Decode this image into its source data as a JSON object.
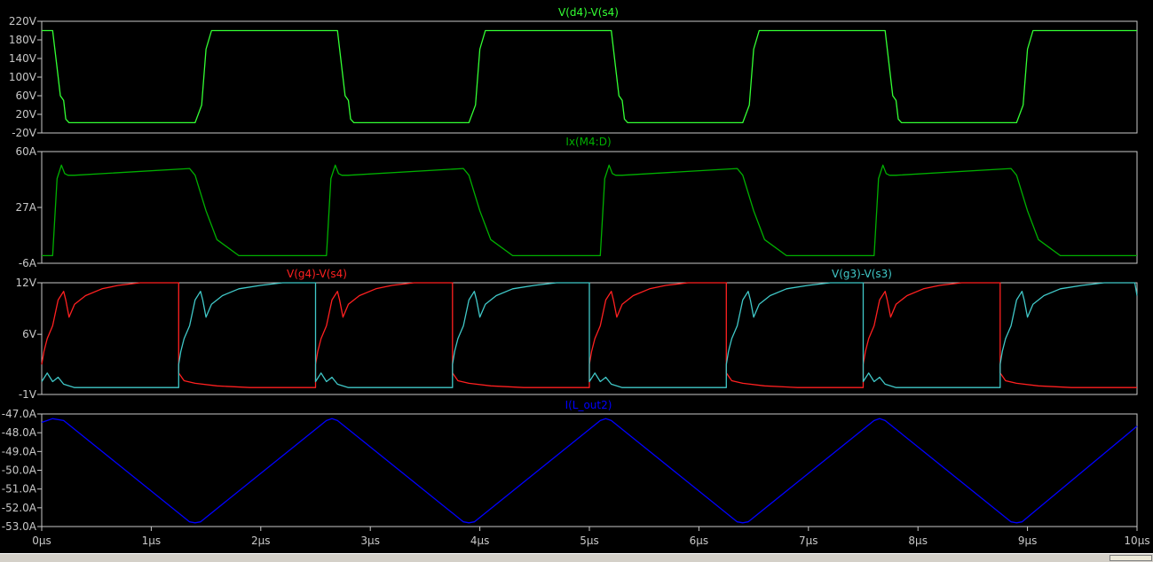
{
  "window": {
    "background": "#000000",
    "axis_color": "#c8c8c8"
  },
  "x_axis": {
    "range": [
      0,
      10
    ],
    "unit": "µs",
    "ticks": [
      0,
      1,
      2,
      3,
      4,
      5,
      6,
      7,
      8,
      9,
      10
    ],
    "tick_labels": [
      "0µs",
      "1µs",
      "2µs",
      "3µs",
      "4µs",
      "5µs",
      "6µs",
      "7µs",
      "8µs",
      "9µs",
      "10µs"
    ]
  },
  "chart_data": [
    {
      "type": "line",
      "title": "V(d4)-V(s4)",
      "ylim": [
        -20,
        220
      ],
      "yticks": [
        -20,
        20,
        60,
        100,
        140,
        180,
        220
      ],
      "ytick_labels": [
        "-20V",
        "20V",
        "60V",
        "100V",
        "140V",
        "180V",
        "220V"
      ],
      "grid": false,
      "series": [
        {
          "name": "V(d4)-V(s4)",
          "color": "#33ff33",
          "x": [
            0,
            0.1,
            0.14,
            0.17,
            0.2,
            0.22,
            0.25,
            1.4,
            1.46,
            1.5,
            1.55,
            2.6,
            2.7,
            2.74,
            2.77,
            2.8,
            2.82,
            2.85,
            3.9,
            3.96,
            4.0,
            4.05,
            5.1,
            5.2,
            5.24,
            5.27,
            5.3,
            5.32,
            5.35,
            6.4,
            6.46,
            6.5,
            6.55,
            7.6,
            7.7,
            7.74,
            7.77,
            7.8,
            7.82,
            7.85,
            8.9,
            8.96,
            9.0,
            9.05,
            10
          ],
          "y": [
            200,
            200,
            120,
            60,
            50,
            10,
            2,
            2,
            40,
            160,
            200,
            200,
            200,
            120,
            60,
            50,
            10,
            2,
            2,
            40,
            160,
            200,
            200,
            200,
            120,
            60,
            50,
            10,
            2,
            2,
            40,
            160,
            200,
            200,
            200,
            120,
            60,
            50,
            10,
            2,
            2,
            40,
            160,
            200,
            200
          ]
        }
      ]
    },
    {
      "type": "line",
      "title": "Ix(M4:D)",
      "ylim": [
        -6,
        60
      ],
      "yticks": [
        -6,
        27,
        60
      ],
      "ytick_labels": [
        "-6A",
        "27A",
        "60A"
      ],
      "grid": false,
      "series": [
        {
          "name": "Ix(M4:D)",
          "color": "#00b000",
          "x": [
            0,
            0.1,
            0.14,
            0.18,
            0.21,
            0.24,
            0.3,
            1.35,
            1.4,
            1.5,
            1.6,
            1.8,
            2.6,
            2.64,
            2.68,
            2.71,
            2.74,
            2.8,
            3.85,
            3.9,
            4.0,
            4.1,
            4.3,
            5.1,
            5.14,
            5.18,
            5.21,
            5.24,
            5.3,
            6.35,
            6.4,
            6.5,
            6.6,
            6.8,
            7.6,
            7.64,
            7.68,
            7.71,
            7.74,
            7.8,
            8.85,
            8.9,
            9.0,
            9.1,
            9.3,
            10
          ],
          "y": [
            -1.5,
            -1.5,
            44,
            52,
            47,
            46,
            46,
            50,
            46,
            25,
            8,
            -1.5,
            -1.5,
            44,
            52,
            47,
            46,
            46,
            50,
            46,
            25,
            8,
            -1.5,
            -1.5,
            44,
            52,
            47,
            46,
            46,
            50,
            46,
            25,
            8,
            -1.5,
            -1.5,
            44,
            52,
            47,
            46,
            46,
            50,
            46,
            25,
            8,
            -1.5,
            -1.5
          ]
        }
      ]
    },
    {
      "type": "line",
      "title": "V(g4)-V(s4) / V(g3)-V(s3)",
      "ylim": [
        -1,
        12
      ],
      "yticks": [
        -1,
        6,
        12
      ],
      "ytick_labels": [
        "-1V",
        "6V",
        "12V"
      ],
      "grid": false,
      "series": [
        {
          "name": "V(g4)-V(s4)",
          "color": "#ff2020",
          "x": [
            0,
            0.02,
            0.05,
            0.1,
            0.15,
            0.2,
            0.22,
            0.25,
            0.3,
            0.4,
            0.55,
            0.7,
            0.9,
            1.25,
            1.25,
            1.3,
            1.4,
            1.6,
            1.9,
            2.5,
            2.5,
            2.52,
            2.55,
            2.6,
            2.65,
            2.7,
            2.72,
            2.75,
            2.8,
            2.9,
            3.05,
            3.2,
            3.4,
            3.75,
            3.75,
            3.8,
            3.9,
            4.1,
            4.4,
            5.0,
            5.0,
            5.02,
            5.05,
            5.1,
            5.15,
            5.2,
            5.22,
            5.25,
            5.3,
            5.4,
            5.55,
            5.7,
            5.9,
            6.25,
            6.25,
            6.3,
            6.4,
            6.6,
            6.9,
            7.5,
            7.5,
            7.52,
            7.55,
            7.6,
            7.65,
            7.7,
            7.72,
            7.75,
            7.8,
            7.9,
            8.05,
            8.2,
            8.4,
            8.75,
            8.75,
            8.8,
            8.9,
            9.1,
            9.4,
            10
          ],
          "y": [
            2.5,
            4,
            5.5,
            7,
            10,
            11,
            10,
            8,
            9.5,
            10.5,
            11.3,
            11.7,
            12,
            12,
            1.5,
            0.6,
            0.3,
            0,
            -0.2,
            -0.2,
            2.5,
            4,
            5.5,
            7,
            10,
            11,
            10,
            8,
            9.5,
            10.5,
            11.3,
            11.7,
            12,
            12,
            1.5,
            0.6,
            0.3,
            0,
            -0.2,
            -0.2,
            2.5,
            4,
            5.5,
            7,
            10,
            11,
            10,
            8,
            9.5,
            10.5,
            11.3,
            11.7,
            12,
            12,
            1.5,
            0.6,
            0.3,
            0,
            -0.2,
            -0.2,
            2.5,
            4,
            5.5,
            7,
            10,
            11,
            10,
            8,
            9.5,
            10.5,
            11.3,
            11.7,
            12,
            12,
            1.5,
            0.6,
            0.3,
            0,
            -0.2,
            -0.2
          ]
        },
        {
          "name": "V(g3)-V(s3)",
          "color": "#40c8c8",
          "x": [
            0,
            0.05,
            0.1,
            0.15,
            0.2,
            0.3,
            0.5,
            0.8,
            1.25,
            1.25,
            1.27,
            1.3,
            1.35,
            1.4,
            1.45,
            1.47,
            1.5,
            1.55,
            1.65,
            1.8,
            2.0,
            2.2,
            2.5,
            2.5,
            2.55,
            2.6,
            2.65,
            2.7,
            2.8,
            3.0,
            3.3,
            3.75,
            3.75,
            3.77,
            3.8,
            3.85,
            3.9,
            3.95,
            3.97,
            4.0,
            4.05,
            4.15,
            4.3,
            4.5,
            4.7,
            5.0,
            5.0,
            5.05,
            5.1,
            5.15,
            5.2,
            5.3,
            5.5,
            5.8,
            6.25,
            6.25,
            6.27,
            6.3,
            6.35,
            6.4,
            6.45,
            6.47,
            6.5,
            6.55,
            6.65,
            6.8,
            7.0,
            7.2,
            7.5,
            7.5,
            7.55,
            7.6,
            7.65,
            7.7,
            7.8,
            8.0,
            8.3,
            8.75,
            8.75,
            8.77,
            8.8,
            8.85,
            8.9,
            8.95,
            8.97,
            9.0,
            9.05,
            9.15,
            9.3,
            9.5,
            9.7,
            9.98,
            10
          ],
          "y": [
            0.5,
            1.5,
            0.5,
            1,
            0.2,
            -0.2,
            -0.2,
            -0.2,
            -0.2,
            2.5,
            4,
            5.5,
            7,
            10,
            11,
            10,
            8,
            9.5,
            10.5,
            11.3,
            11.7,
            12,
            12,
            0.5,
            1.5,
            0.5,
            1,
            0.2,
            -0.2,
            -0.2,
            -0.2,
            -0.2,
            2.5,
            4,
            5.5,
            7,
            10,
            11,
            10,
            8,
            9.5,
            10.5,
            11.3,
            11.7,
            12,
            12,
            0.5,
            1.5,
            0.5,
            1,
            0.2,
            -0.2,
            -0.2,
            -0.2,
            -0.2,
            2.5,
            4,
            5.5,
            7,
            10,
            11,
            10,
            8,
            9.5,
            10.5,
            11.3,
            11.7,
            12,
            12,
            0.5,
            1.5,
            0.5,
            1,
            0.2,
            -0.2,
            -0.2,
            -0.2,
            -0.2,
            2.5,
            4,
            5.5,
            7,
            10,
            11,
            10,
            8,
            9.5,
            10.5,
            11.3,
            11.7,
            12,
            12,
            10.5
          ]
        }
      ]
    },
    {
      "type": "line",
      "title": "I(L_out2)",
      "ylim": [
        -53.0,
        -47.0
      ],
      "yticks": [
        -53.0,
        -52.0,
        -51.0,
        -50.0,
        -49.0,
        -48.0,
        -47.0
      ],
      "ytick_labels": [
        "-53.0A",
        "-52.0A",
        "-51.0A",
        "-50.0A",
        "-49.0A",
        "-48.0A",
        "-47.0A"
      ],
      "grid": false,
      "series": [
        {
          "name": "I(L_out2)",
          "color": "#0000ff",
          "x": [
            0,
            0.1,
            0.2,
            1.35,
            1.4,
            1.45,
            2.6,
            2.65,
            2.7,
            3.85,
            3.9,
            3.95,
            5.1,
            5.15,
            5.2,
            6.35,
            6.4,
            6.45,
            7.6,
            7.65,
            7.7,
            8.85,
            8.9,
            8.95,
            10
          ],
          "y": [
            -47.45,
            -47.25,
            -47.35,
            -52.75,
            -52.8,
            -52.75,
            -47.35,
            -47.25,
            -47.35,
            -52.75,
            -52.8,
            -52.75,
            -47.35,
            -47.25,
            -47.35,
            -52.75,
            -52.8,
            -52.75,
            -47.35,
            -47.25,
            -47.35,
            -52.75,
            -52.8,
            -52.75,
            -47.65
          ]
        }
      ]
    }
  ]
}
